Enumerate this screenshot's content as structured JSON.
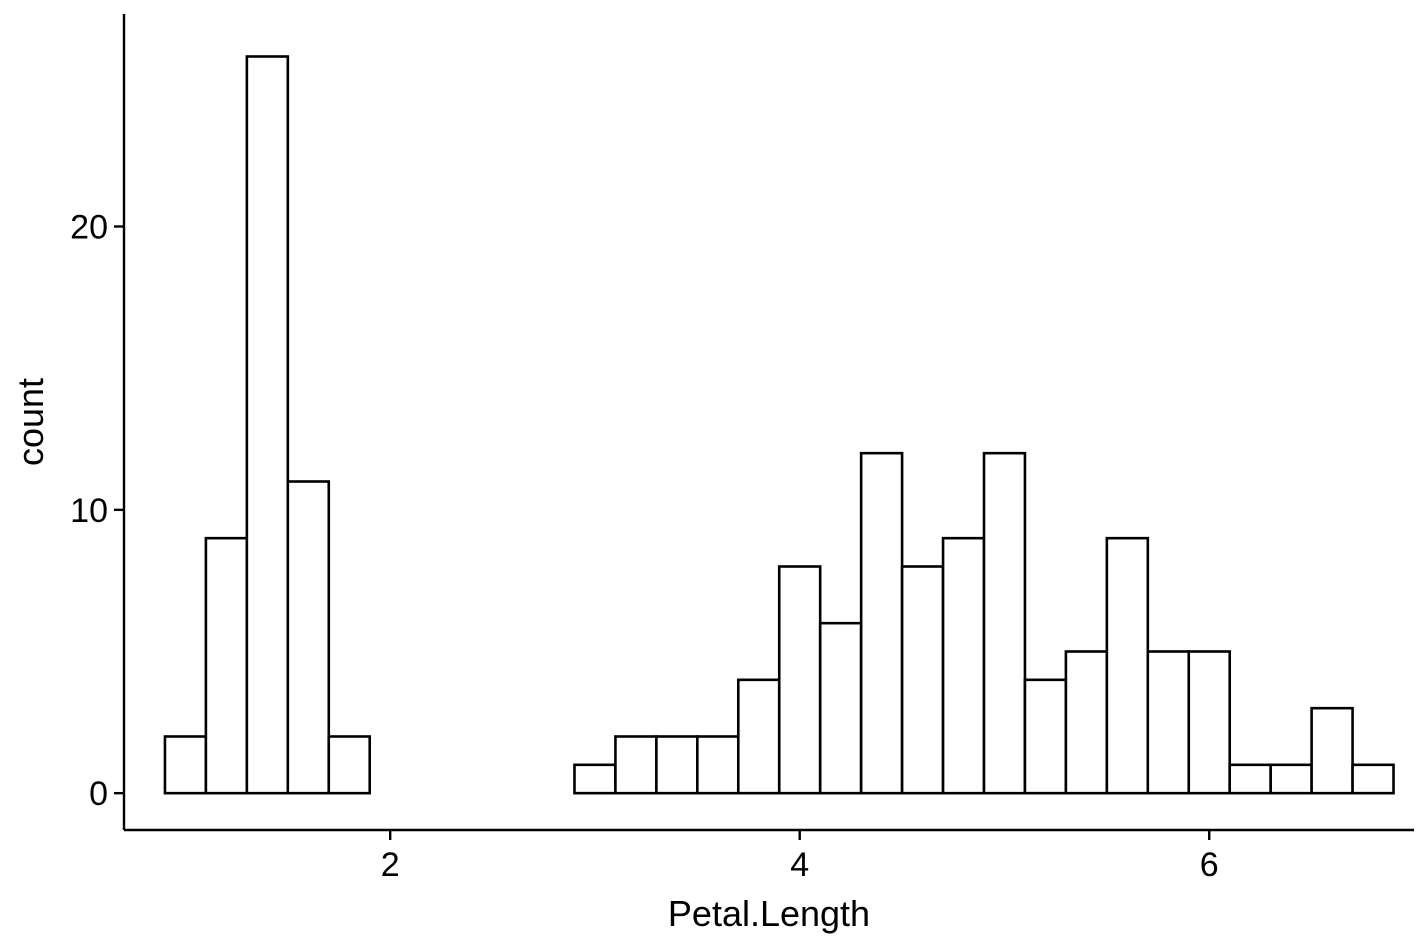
{
  "chart_data": {
    "type": "bar",
    "subtype": "histogram",
    "title": "",
    "xlabel": "Petal.Length",
    "ylabel": "count",
    "xlim": [
      0.7,
      7.0
    ],
    "ylim": [
      -1.3,
      27.5
    ],
    "x_ticks": [
      2,
      4,
      6
    ],
    "y_ticks": [
      0,
      10,
      20
    ],
    "grid": false,
    "legend": "none",
    "bar_fill": "#ffffff",
    "bar_stroke": "#000000",
    "bin_width": 0.2,
    "bins": [
      {
        "x0": 0.9,
        "x1": 1.1,
        "count": 2
      },
      {
        "x0": 1.1,
        "x1": 1.3,
        "count": 9
      },
      {
        "x0": 1.3,
        "x1": 1.5,
        "count": 26
      },
      {
        "x0": 1.5,
        "x1": 1.7,
        "count": 11
      },
      {
        "x0": 1.7,
        "x1": 1.9,
        "count": 2
      },
      {
        "x0": 1.9,
        "x1": 2.1,
        "count": 0
      },
      {
        "x0": 2.1,
        "x1": 2.3,
        "count": 0
      },
      {
        "x0": 2.3,
        "x1": 2.5,
        "count": 0
      },
      {
        "x0": 2.5,
        "x1": 2.7,
        "count": 0
      },
      {
        "x0": 2.7,
        "x1": 2.9,
        "count": 0
      },
      {
        "x0": 2.9,
        "x1": 3.1,
        "count": 1
      },
      {
        "x0": 3.1,
        "x1": 3.3,
        "count": 2
      },
      {
        "x0": 3.3,
        "x1": 3.5,
        "count": 2
      },
      {
        "x0": 3.5,
        "x1": 3.7,
        "count": 2
      },
      {
        "x0": 3.7,
        "x1": 3.9,
        "count": 4
      },
      {
        "x0": 3.9,
        "x1": 4.1,
        "count": 8
      },
      {
        "x0": 4.1,
        "x1": 4.3,
        "count": 6
      },
      {
        "x0": 4.3,
        "x1": 4.5,
        "count": 12
      },
      {
        "x0": 4.5,
        "x1": 4.7,
        "count": 8
      },
      {
        "x0": 4.7,
        "x1": 4.9,
        "count": 9
      },
      {
        "x0": 4.9,
        "x1": 5.1,
        "count": 12
      },
      {
        "x0": 5.1,
        "x1": 5.3,
        "count": 4
      },
      {
        "x0": 5.3,
        "x1": 5.5,
        "count": 5
      },
      {
        "x0": 5.5,
        "x1": 5.7,
        "count": 9
      },
      {
        "x0": 5.7,
        "x1": 5.9,
        "count": 5
      },
      {
        "x0": 5.9,
        "x1": 6.1,
        "count": 5
      },
      {
        "x0": 6.1,
        "x1": 6.3,
        "count": 1
      },
      {
        "x0": 6.3,
        "x1": 6.5,
        "count": 1
      },
      {
        "x0": 6.5,
        "x1": 6.7,
        "count": 3
      },
      {
        "x0": 6.7,
        "x1": 6.9,
        "count": 1
      }
    ]
  }
}
